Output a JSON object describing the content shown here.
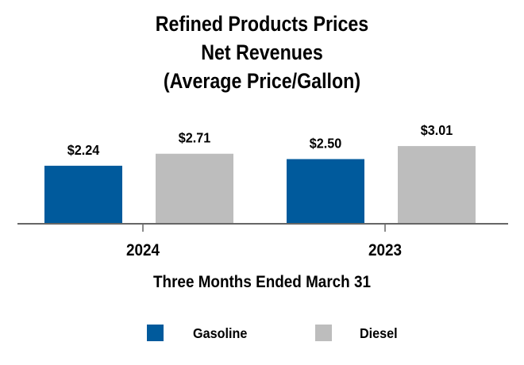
{
  "chart_data": {
    "type": "bar",
    "title_lines": [
      "Refined Products Prices",
      "Net Revenues",
      "(Average Price/Gallon)"
    ],
    "categories": [
      "2024",
      "2023"
    ],
    "series": [
      {
        "name": "Gasoline",
        "values": [
          2.24,
          2.5
        ],
        "labels": [
          "$2.24",
          "$2.50"
        ],
        "color": "#005A9C"
      },
      {
        "name": "Diesel",
        "values": [
          2.71,
          3.01
        ],
        "labels": [
          "$2.71",
          "$3.01"
        ],
        "color": "#BDBDBD"
      }
    ],
    "xlabel": "Three Months Ended March 31",
    "ylim": [
      0,
      3.6
    ],
    "grid": false,
    "legend": "bottom"
  }
}
